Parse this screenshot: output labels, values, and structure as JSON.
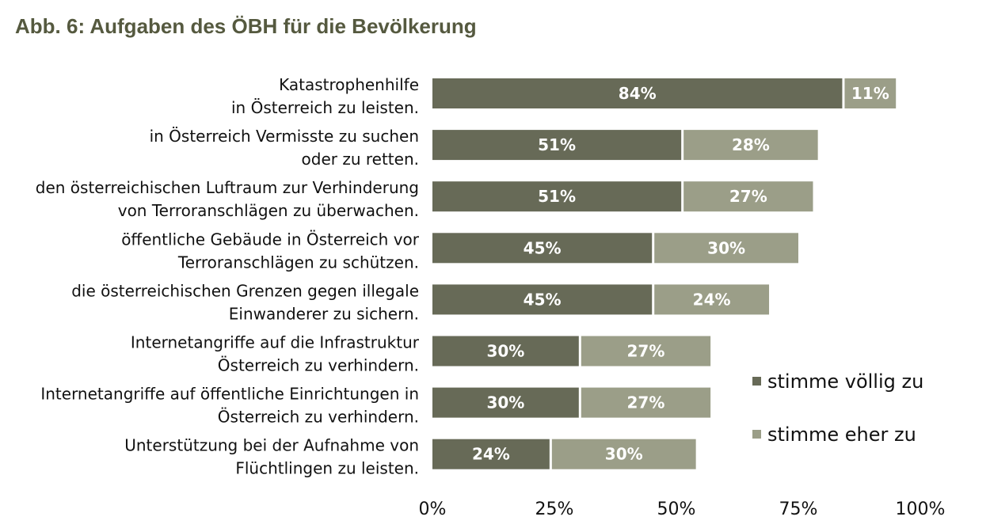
{
  "header": {
    "title": "Abb. 6: Aufgaben des ÖBH für die Bevölkerung"
  },
  "chart_data": {
    "type": "bar",
    "orientation": "horizontal",
    "stacked": true,
    "categories": [
      [
        "Katastrophenhilfe",
        "in Österreich zu leisten."
      ],
      [
        "in Österreich Vermisste zu suchen",
        "oder zu retten."
      ],
      [
        "den österreichischen Luftraum zur Verhinderung",
        "von Terroranschlägen zu überwachen."
      ],
      [
        "öffentliche Gebäude in Österreich vor",
        "Terroranschlägen zu schützen."
      ],
      [
        "die österreichischen Grenzen gegen illegale",
        "Einwanderer zu sichern."
      ],
      [
        "Internetangriffe auf die Infrastruktur",
        "Österreich zu verhindern."
      ],
      [
        "Internetangriffe auf öffentliche Einrichtungen in",
        "Österreich zu verhindern."
      ],
      [
        "Unterstützung bei der Aufnahme von",
        "Flüchtlingen zu leisten."
      ]
    ],
    "series": [
      {
        "name": "stimme völlig zu",
        "color": "#676a57",
        "values": [
          84,
          51,
          51,
          45,
          45,
          30,
          30,
          24
        ]
      },
      {
        "name": "stimme eher zu",
        "color": "#9b9e88",
        "values": [
          11,
          28,
          27,
          30,
          24,
          27,
          27,
          30
        ]
      }
    ],
    "value_suffix": "%",
    "xlim": [
      0,
      100
    ],
    "xticks": [
      0,
      25,
      50,
      75,
      100
    ],
    "xtick_labels": [
      "0%",
      "25%",
      "50%",
      "75%",
      "100%"
    ],
    "grid": false,
    "legend_position": "right"
  }
}
